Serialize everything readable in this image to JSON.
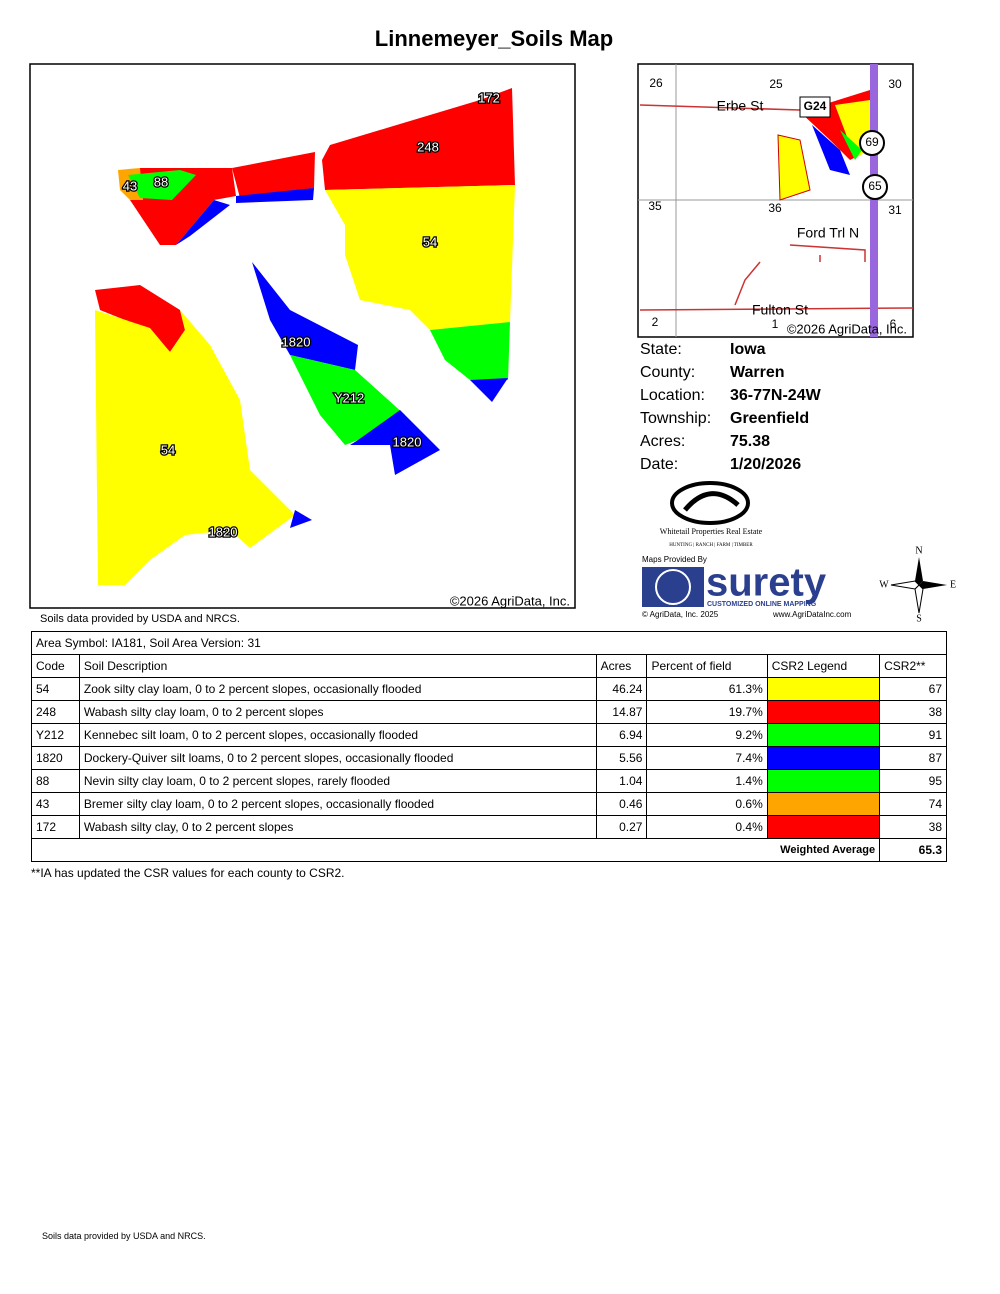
{
  "header": {
    "title": "Linnemeyer_Soils Map"
  },
  "map": {
    "labels": [
      "172",
      "248",
      "43",
      "88",
      "54",
      "1820",
      "Y212",
      "1820",
      "54",
      "1820"
    ],
    "copyright": "©2026 AgriData, Inc.",
    "source": "Soils data provided by USDA and NRCS."
  },
  "locator": {
    "sections": [
      "26",
      "25",
      "30",
      "35",
      "36",
      "31",
      "2",
      "1",
      "6"
    ],
    "roads": [
      "Erbe St",
      "G24",
      "69",
      "65",
      "Ford Trl N",
      "Fulton St"
    ],
    "copyright": "©2026 AgriData, Inc."
  },
  "info": [
    [
      "State:",
      "Iowa"
    ],
    [
      "County:",
      "Warren"
    ],
    [
      "Location:",
      "36-77N-24W"
    ],
    [
      "Township:",
      "Greenfield"
    ],
    [
      "Acres:",
      "75.38"
    ],
    [
      "Date:",
      "1/20/2026"
    ]
  ],
  "logos": {
    "whitetail": "Whitetail Properties Real Estate",
    "whitetail_tagline": "HUNTING | RANCH | FARM | TIMBER",
    "maps_by": "Maps Provided By",
    "surety": "surety",
    "surety_tagline": "CUSTOMIZED ONLINE MAPPING",
    "agridata": "© AgriData, Inc. 2025",
    "url": "www.AgriDataInc.com"
  },
  "compass": {
    "n": "N",
    "s": "S",
    "e": "E",
    "w": "W"
  },
  "table": {
    "area": "Area Symbol: IA181, Soil Area Version: 31",
    "headers": [
      "Code",
      "Soil Description",
      "Acres",
      "Percent of field",
      "CSR2 Legend",
      "CSR2**"
    ],
    "rows": [
      {
        "cells": [
          "54",
          "Zook silty clay loam, 0 to 2 percent slopes, occasionally flooded",
          "46.24",
          "61.3%"
        ],
        "color": "#ffff00",
        "csr2": "67"
      },
      {
        "cells": [
          "248",
          "Wabash silty clay loam, 0 to 2 percent slopes",
          "14.87",
          "19.7%"
        ],
        "color": "#ff0000",
        "csr2": "38"
      },
      {
        "cells": [
          "Y212",
          "Kennebec silt loam, 0 to 2 percent slopes, occasionally flooded",
          "6.94",
          "9.2%"
        ],
        "color": "#00ff00",
        "csr2": "91"
      },
      {
        "cells": [
          "1820",
          "Dockery-Quiver silt loams, 0 to 2 percent slopes, occasionally flooded",
          "5.56",
          "7.4%"
        ],
        "color": "#0000ff",
        "csr2": "87"
      },
      {
        "cells": [
          "88",
          "Nevin silty clay loam, 0 to 2 percent slopes, rarely flooded",
          "1.04",
          "1.4%"
        ],
        "color": "#00ff00",
        "csr2": "95"
      },
      {
        "cells": [
          "43",
          "Bremer silty clay loam, 0 to 2 percent slopes, occasionally flooded",
          "0.46",
          "0.6%"
        ],
        "color": "#ffa500",
        "csr2": "74"
      },
      {
        "cells": [
          "172",
          "Wabash silty clay, 0 to 2 percent slopes",
          "0.27",
          "0.4%"
        ],
        "color": "#ff0000",
        "csr2": "38"
      }
    ],
    "weighted_label": "Weighted Average",
    "weighted_value": "65.3"
  },
  "footnote": "**IA has updated the CSR values for each county to CSR2.",
  "footer": "Soils data provided by USDA and NRCS."
}
